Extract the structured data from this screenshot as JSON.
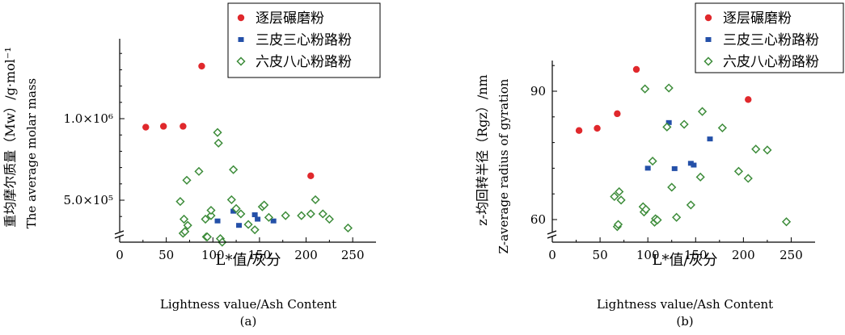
{
  "chart_data": [
    {
      "type": "scatter",
      "panel_label": "(a)",
      "xlabel_cn": "L*值/灰分",
      "xlabel_en": "Lightness value/Ash Content",
      "ylabel_cn": "重均摩尔质量（Mw）/g·mol⁻¹",
      "ylabel_en": "The average molar mass",
      "y_tick_labels": [
        "5.0×10⁵",
        "1.0×10⁶"
      ],
      "x_ticks": [
        0,
        50,
        100,
        150,
        200,
        250
      ],
      "xlim": [
        0,
        275
      ],
      "ylim": [
        300000,
        1450000
      ],
      "axis_break": true,
      "legend_position": "top-right",
      "series": [
        {
          "name": "逐层碾磨粉",
          "marker": "circle",
          "color": "#e0282c",
          "points": [
            [
              28,
              950000
            ],
            [
              47,
              955000
            ],
            [
              68,
              955000
            ],
            [
              88,
              1295000
            ],
            [
              205,
              675000
            ]
          ]
        },
        {
          "name": "三皮三心粉路粉",
          "marker": "square",
          "color": "#2450a8",
          "points": [
            [
              105,
              420000
            ],
            [
              122,
              475000
            ],
            [
              128,
              395000
            ],
            [
              145,
              455000
            ],
            [
              148,
              430000
            ],
            [
              165,
              420000
            ]
          ]
        },
        {
          "name": "六皮八心粉路粉",
          "marker": "diamond",
          "color": "#3d8c3a",
          "points": [
            [
              65,
              530000
            ],
            [
              68,
              350000
            ],
            [
              69,
              430000
            ],
            [
              70,
              360000
            ],
            [
              72,
              650000
            ],
            [
              73,
              395000
            ],
            [
              85,
              700000
            ],
            [
              92,
              430000
            ],
            [
              93,
              330000
            ],
            [
              94,
              330000
            ],
            [
              98,
              450000
            ],
            [
              98,
              480000
            ],
            [
              105,
              920000
            ],
            [
              106,
              860000
            ],
            [
              108,
              320000
            ],
            [
              110,
              300000
            ],
            [
              120,
              540000
            ],
            [
              122,
              710000
            ],
            [
              125,
              490000
            ],
            [
              130,
              460000
            ],
            [
              138,
              400000
            ],
            [
              145,
              370000
            ],
            [
              153,
              500000
            ],
            [
              155,
              510000
            ],
            [
              160,
              440000
            ],
            [
              178,
              450000
            ],
            [
              195,
              450000
            ],
            [
              205,
              460000
            ],
            [
              210,
              540000
            ],
            [
              218,
              460000
            ],
            [
              225,
              430000
            ],
            [
              245,
              380000
            ]
          ]
        }
      ]
    },
    {
      "type": "scatter",
      "panel_label": "(b)",
      "xlabel_cn": "L*值/灰分",
      "xlabel_en": "Lightness value/Ash Content",
      "ylabel_cn": "z-均回转半径（Rgz）/nm",
      "ylabel_en": "Z-average radius of gyration",
      "y_tick_labels": [
        "60",
        "90"
      ],
      "x_ticks": [
        0,
        50,
        100,
        150,
        200,
        250
      ],
      "xlim": [
        0,
        275
      ],
      "ylim": [
        56,
        97
      ],
      "axis_break": true,
      "legend_position": "top-right",
      "series": [
        {
          "name": "逐层碾磨粉",
          "marker": "circle",
          "color": "#e0282c",
          "points": [
            [
              28,
              81.2
            ],
            [
              47,
              81.7
            ],
            [
              68,
              85.0
            ],
            [
              88,
              95.0
            ],
            [
              205,
              88.2
            ]
          ]
        },
        {
          "name": "三皮三心粉路粉",
          "marker": "square",
          "color": "#2450a8",
          "points": [
            [
              100,
              72.7
            ],
            [
              122,
              83.0
            ],
            [
              128,
              72.6
            ],
            [
              145,
              73.8
            ],
            [
              148,
              73.4
            ],
            [
              165,
              79.3
            ]
          ]
        },
        {
          "name": "六皮八心粉路粉",
          "marker": "diamond",
          "color": "#3d8c3a",
          "points": [
            [
              65,
              66.3
            ],
            [
              68,
              59.5
            ],
            [
              69,
              60.0
            ],
            [
              70,
              67.4
            ],
            [
              72,
              65.5
            ],
            [
              95,
              64.0
            ],
            [
              96,
              62.8
            ],
            [
              97,
              90.6
            ],
            [
              98,
              63.4
            ],
            [
              105,
              74.3
            ],
            [
              107,
              60.5
            ],
            [
              108,
              61.3
            ],
            [
              110,
              61.0
            ],
            [
              120,
              82.0
            ],
            [
              122,
              90.8
            ],
            [
              125,
              68.4
            ],
            [
              130,
              61.6
            ],
            [
              138,
              82.6
            ],
            [
              145,
              64.4
            ],
            [
              155,
              70.7
            ],
            [
              157,
              85.5
            ],
            [
              178,
              81.8
            ],
            [
              195,
              72.0
            ],
            [
              205,
              70.4
            ],
            [
              213,
              77.0
            ],
            [
              225,
              76.8
            ],
            [
              245,
              60.6
            ]
          ]
        }
      ]
    }
  ]
}
